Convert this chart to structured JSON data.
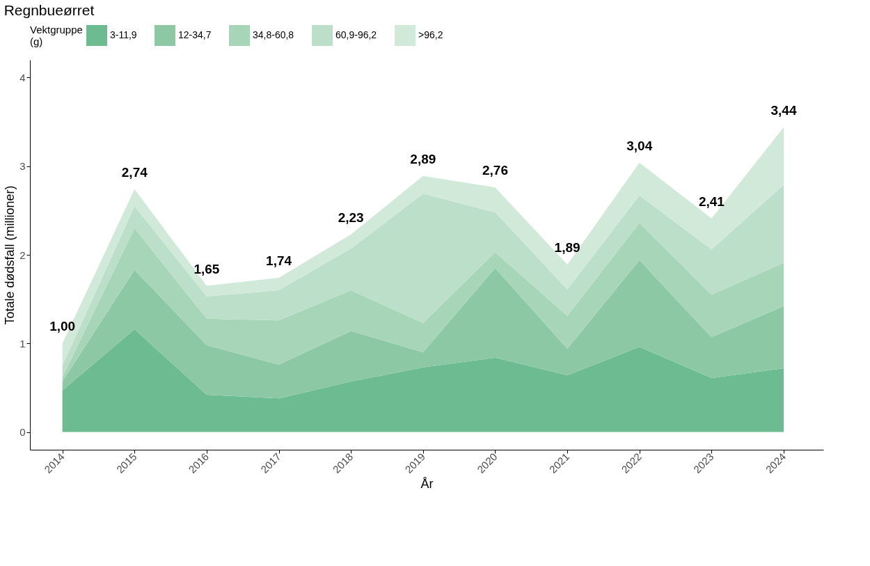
{
  "chart_data": {
    "type": "area",
    "title": "Regnbueørret",
    "xlabel": "År",
    "ylabel": "Totale dødsfall (millioner)",
    "legend_title": "Vektgruppe (g)",
    "categories": [
      "2014",
      "2015",
      "2016",
      "2017",
      "2018",
      "2019",
      "2020",
      "2021",
      "2022",
      "2023",
      "2024"
    ],
    "stacked": true,
    "series": [
      {
        "name": "3-11,9",
        "color": "#6dbb91",
        "values": [
          0.47,
          1.16,
          0.42,
          0.38,
          0.57,
          0.73,
          0.84,
          0.64,
          0.96,
          0.61,
          0.72
        ]
      },
      {
        "name": "12-34,7",
        "color": "#8bc8a3",
        "values": [
          0.1,
          0.67,
          0.56,
          0.38,
          0.57,
          0.17,
          1.01,
          0.3,
          0.98,
          0.46,
          0.7
        ]
      },
      {
        "name": "34,8-60,8",
        "color": "#a6d5b7",
        "values": [
          0.05,
          0.47,
          0.3,
          0.5,
          0.46,
          0.33,
          0.18,
          0.37,
          0.42,
          0.48,
          0.49
        ]
      },
      {
        "name": "60,9-96,2",
        "color": "#bbdfc8",
        "values": [
          0.13,
          0.25,
          0.25,
          0.34,
          0.47,
          1.46,
          0.45,
          0.3,
          0.31,
          0.51,
          0.88
        ]
      },
      {
        "name": ">96,2",
        "color": "#d1e9d9",
        "values": [
          0.25,
          0.19,
          0.12,
          0.14,
          0.16,
          0.2,
          0.28,
          0.28,
          0.37,
          0.35,
          0.65
        ]
      }
    ],
    "totals": [
      "1,00",
      "2,74",
      "1,65",
      "1,74",
      "2,23",
      "2,89",
      "2,76",
      "1,89",
      "3,04",
      "2,41",
      "3,44"
    ],
    "ylim": [
      -0.2,
      4.2
    ],
    "yticks": [
      0,
      1,
      2,
      3,
      4
    ],
    "grid": false,
    "legend": "top"
  }
}
